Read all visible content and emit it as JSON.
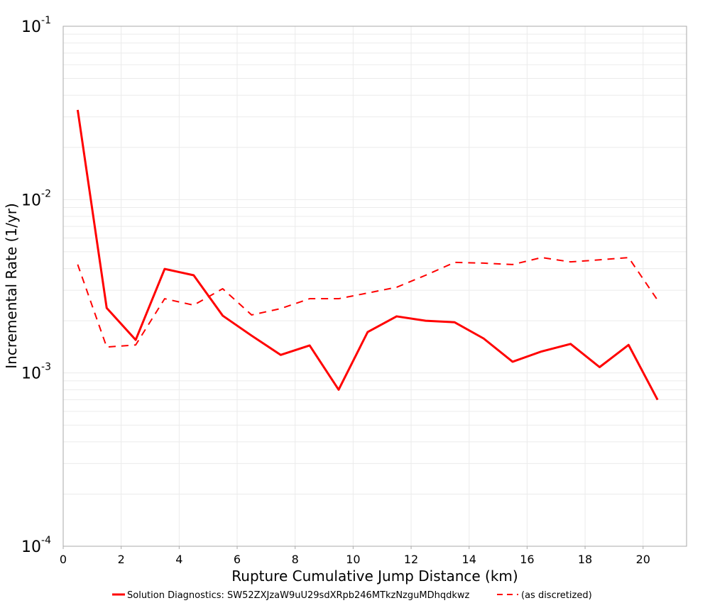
{
  "chart_data": {
    "type": "line",
    "title": "",
    "xlabel": "Rupture Cumulative Jump Distance (km)",
    "ylabel": "Incremental Rate (1/yr)",
    "xlim": [
      0,
      21.5
    ],
    "ylim": [
      0.0001,
      0.1
    ],
    "yscale": "log",
    "grid": true,
    "legend_position": "bottom",
    "x_ticks": [
      0,
      2,
      4,
      6,
      8,
      10,
      12,
      14,
      16,
      18,
      20
    ],
    "y_ticks": [
      {
        "base": "10",
        "exp": "-4",
        "value": 0.0001
      },
      {
        "base": "10",
        "exp": "-3",
        "value": 0.001
      },
      {
        "base": "10",
        "exp": "-2",
        "value": 0.01
      },
      {
        "base": "10",
        "exp": "-1",
        "value": 0.1
      }
    ],
    "x": [
      0.5,
      1.5,
      2.5,
      3.5,
      4.5,
      5.5,
      6.5,
      7.5,
      8.5,
      9.5,
      10.5,
      11.5,
      12.5,
      13.5,
      14.5,
      15.5,
      16.5,
      17.5,
      18.5,
      19.5,
      20.5
    ],
    "series": [
      {
        "name": "Solution Diagnostics: SW52ZXJzaW9uU29sdXRpb246MTkzNzguMDhqdkwz",
        "color": "#ff0000",
        "dash": false,
        "values": [
          0.0329,
          0.00237,
          0.00155,
          0.00398,
          0.00366,
          0.00214,
          0.00164,
          0.00127,
          0.00144,
          0.0008,
          0.00172,
          0.00212,
          0.002,
          0.00196,
          0.00158,
          0.00116,
          0.00133,
          0.00147,
          0.00108,
          0.00145,
          0.0007
        ]
      },
      {
        "name": "(as discretized)",
        "color": "#ff0000",
        "dash": true,
        "values": [
          0.00422,
          0.00141,
          0.00145,
          0.00268,
          0.00246,
          0.00306,
          0.00216,
          0.00235,
          0.00268,
          0.00268,
          0.00289,
          0.00312,
          0.00366,
          0.00434,
          0.0043,
          0.00422,
          0.00463,
          0.00437,
          0.00449,
          0.00463,
          0.00263
        ]
      }
    ]
  }
}
